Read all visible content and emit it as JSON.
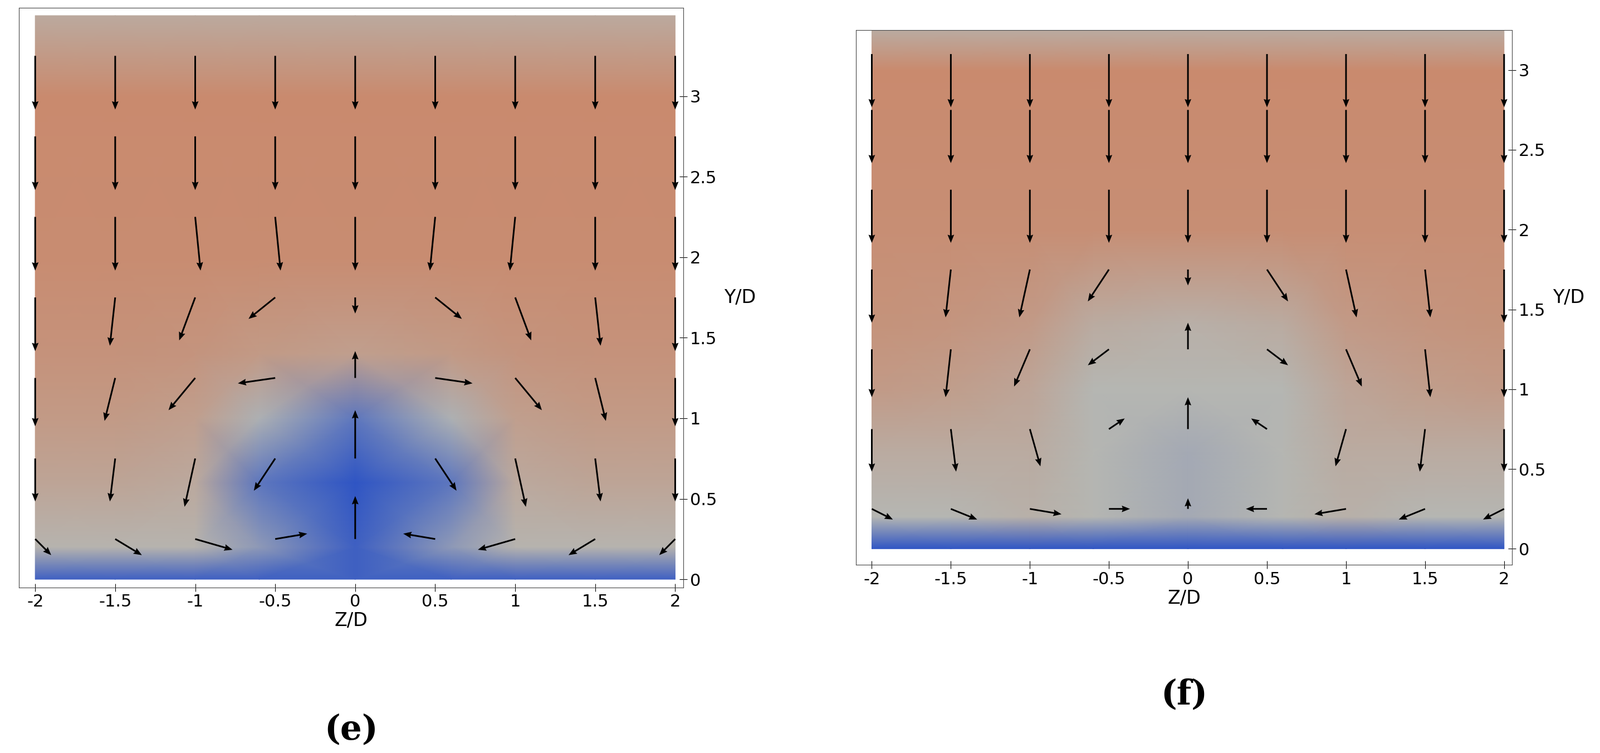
{
  "chart_data": [
    {
      "type": "quiver",
      "title": "(e)",
      "x_label": "Z/D",
      "y_label": "Y/D",
      "xlim": [
        -2.1,
        2.05
      ],
      "ylim": [
        -0.05,
        3.55
      ],
      "xticks": [
        -2,
        -1.5,
        -1,
        -0.5,
        0,
        0.5,
        1,
        1.5,
        2
      ],
      "yticks": [
        0,
        0.5,
        1,
        1.5,
        2,
        2.5,
        3
      ],
      "x": [
        -2,
        -1.5,
        -1,
        -0.5,
        0,
        0.5,
        1,
        1.5,
        2
      ],
      "y": [
        0.25,
        0.75,
        1.25,
        1.75,
        2.25,
        2.75,
        3.25
      ],
      "u": [
        [
          0.3,
          0.5,
          0.7,
          0.6,
          0,
          -0.6,
          -0.7,
          -0.5,
          -0.3
        ],
        [
          0,
          -0.1,
          -0.2,
          -0.4,
          0,
          0.4,
          0.2,
          0.1,
          0
        ],
        [
          0,
          -0.2,
          -0.5,
          -0.7,
          0,
          0.7,
          0.5,
          0.2,
          0
        ],
        [
          0,
          -0.1,
          -0.3,
          -0.5,
          0,
          0.5,
          0.3,
          0.1,
          0
        ],
        [
          0,
          0,
          0.1,
          0.1,
          0,
          -0.1,
          -0.1,
          0,
          0
        ],
        [
          0,
          0,
          0,
          0,
          0,
          0,
          0,
          0,
          0
        ],
        [
          0,
          0,
          0,
          0,
          0,
          0,
          0,
          0,
          0
        ]
      ],
      "v": [
        [
          -0.3,
          -0.3,
          -0.2,
          0.1,
          0.8,
          0.1,
          -0.2,
          -0.3,
          -0.3
        ],
        [
          -0.8,
          -0.8,
          -0.9,
          -0.6,
          0.9,
          -0.6,
          -0.9,
          -0.8,
          -0.8
        ],
        [
          -0.9,
          -0.8,
          -0.6,
          -0.1,
          0.5,
          -0.1,
          -0.6,
          -0.8,
          -0.9
        ],
        [
          -1,
          -0.9,
          -0.8,
          -0.4,
          -0.3,
          -0.4,
          -0.8,
          -0.9,
          -1
        ],
        [
          -1,
          -1,
          -1,
          -1,
          -1,
          -1,
          -1,
          -1,
          -1
        ],
        [
          -1,
          -1,
          -1,
          -1,
          -1,
          -1,
          -1,
          -1,
          -1
        ],
        [
          -1,
          -1,
          -1,
          -1,
          -1,
          -1,
          -1,
          -1,
          -1
        ]
      ],
      "field_x": [
        -2,
        -1.5,
        -1,
        -0.6,
        0,
        0.6,
        1,
        1.5,
        2
      ],
      "field_y": [
        0,
        0.2,
        0.6,
        1.0,
        1.4,
        2.0,
        3.0,
        3.5
      ],
      "field": [
        [
          0.1,
          0.1,
          0.1,
          0.1,
          0.1,
          0.1,
          0.1,
          0.1,
          0.1
        ],
        [
          0.5,
          0.5,
          0.5,
          0.35,
          0.1,
          0.35,
          0.5,
          0.5,
          0.5
        ],
        [
          0.65,
          0.65,
          0.6,
          0.2,
          0.05,
          0.2,
          0.6,
          0.65,
          0.65
        ],
        [
          0.75,
          0.75,
          0.7,
          0.45,
          0.2,
          0.45,
          0.7,
          0.75,
          0.75
        ],
        [
          0.82,
          0.82,
          0.8,
          0.75,
          0.7,
          0.75,
          0.8,
          0.82,
          0.82
        ],
        [
          0.88,
          0.88,
          0.88,
          0.88,
          0.88,
          0.88,
          0.88,
          0.88,
          0.88
        ],
        [
          0.9,
          0.9,
          0.9,
          0.9,
          0.9,
          0.9,
          0.9,
          0.9,
          0.9
        ],
        [
          0.6,
          0.6,
          0.6,
          0.6,
          0.6,
          0.6,
          0.6,
          0.6,
          0.6
        ]
      ]
    },
    {
      "type": "quiver",
      "title": "(f)",
      "x_label": "Z/D",
      "y_label": "Y/D",
      "xlim": [
        -2.1,
        2.05
      ],
      "ylim": [
        -0.1,
        3.25
      ],
      "xticks": [
        -2,
        -1.5,
        -1,
        -0.5,
        0,
        0.5,
        1,
        1.5,
        2
      ],
      "yticks": [
        0,
        0.5,
        1,
        1.5,
        2,
        2.5,
        3
      ],
      "x": [
        -2,
        -1.5,
        -1,
        -0.5,
        0,
        0.5,
        1,
        1.5,
        2
      ],
      "y": [
        0.25,
        0.75,
        1.25,
        1.75,
        2.25,
        2.75,
        3.1
      ],
      "u": [
        [
          0.4,
          0.5,
          0.6,
          0.4,
          0,
          -0.4,
          -0.6,
          -0.5,
          -0.4
        ],
        [
          0,
          0.1,
          0.2,
          0.3,
          0,
          -0.3,
          -0.2,
          -0.1,
          0
        ],
        [
          0,
          -0.1,
          -0.3,
          -0.4,
          0,
          0.4,
          0.3,
          0.1,
          0
        ],
        [
          0,
          -0.1,
          -0.2,
          -0.4,
          0,
          0.4,
          0.2,
          0.1,
          0
        ],
        [
          0,
          0,
          0,
          0,
          0,
          0,
          0,
          0,
          0
        ],
        [
          0,
          0,
          0,
          0,
          0,
          0,
          0,
          0,
          0
        ],
        [
          0,
          0,
          0,
          0,
          0,
          0,
          0,
          0,
          0
        ]
      ],
      "v": [
        [
          -0.2,
          -0.2,
          -0.1,
          0,
          0.2,
          0,
          -0.1,
          -0.2,
          -0.2
        ],
        [
          -0.8,
          -0.8,
          -0.7,
          0.2,
          0.6,
          0.2,
          -0.7,
          -0.8,
          -0.8
        ],
        [
          -0.9,
          -0.9,
          -0.7,
          -0.3,
          0.5,
          -0.3,
          -0.7,
          -0.9,
          -0.9
        ],
        [
          -1,
          -0.9,
          -0.9,
          -0.6,
          -0.3,
          -0.6,
          -0.9,
          -0.9,
          -1
        ],
        [
          -1,
          -1,
          -1,
          -1,
          -1,
          -1,
          -1,
          -1,
          -1
        ],
        [
          -1,
          -1,
          -1,
          -1,
          -1,
          -1,
          -1,
          -1,
          -1
        ],
        [
          -1,
          -1,
          -1,
          -1,
          -1,
          -1,
          -1,
          -1,
          -1
        ]
      ],
      "field_x": [
        -2,
        -1.5,
        -1,
        -0.6,
        0,
        0.6,
        1,
        1.5,
        2
      ],
      "field_y": [
        0,
        0.2,
        0.6,
        1.0,
        1.4,
        2.0,
        3.0,
        3.25
      ],
      "field": [
        [
          0.1,
          0.1,
          0.1,
          0.1,
          0.1,
          0.1,
          0.1,
          0.1,
          0.1
        ],
        [
          0.5,
          0.5,
          0.55,
          0.5,
          0.45,
          0.5,
          0.55,
          0.5,
          0.5
        ],
        [
          0.6,
          0.6,
          0.6,
          0.5,
          0.45,
          0.5,
          0.6,
          0.6,
          0.6
        ],
        [
          0.75,
          0.72,
          0.65,
          0.5,
          0.5,
          0.5,
          0.65,
          0.72,
          0.75
        ],
        [
          0.82,
          0.8,
          0.75,
          0.6,
          0.55,
          0.6,
          0.75,
          0.8,
          0.82
        ],
        [
          0.86,
          0.86,
          0.86,
          0.86,
          0.86,
          0.86,
          0.86,
          0.86,
          0.86
        ],
        [
          0.9,
          0.9,
          0.9,
          0.9,
          0.9,
          0.9,
          0.9,
          0.9,
          0.9
        ],
        [
          0.6,
          0.6,
          0.6,
          0.6,
          0.6,
          0.6,
          0.6,
          0.6,
          0.6
        ]
      ]
    }
  ]
}
